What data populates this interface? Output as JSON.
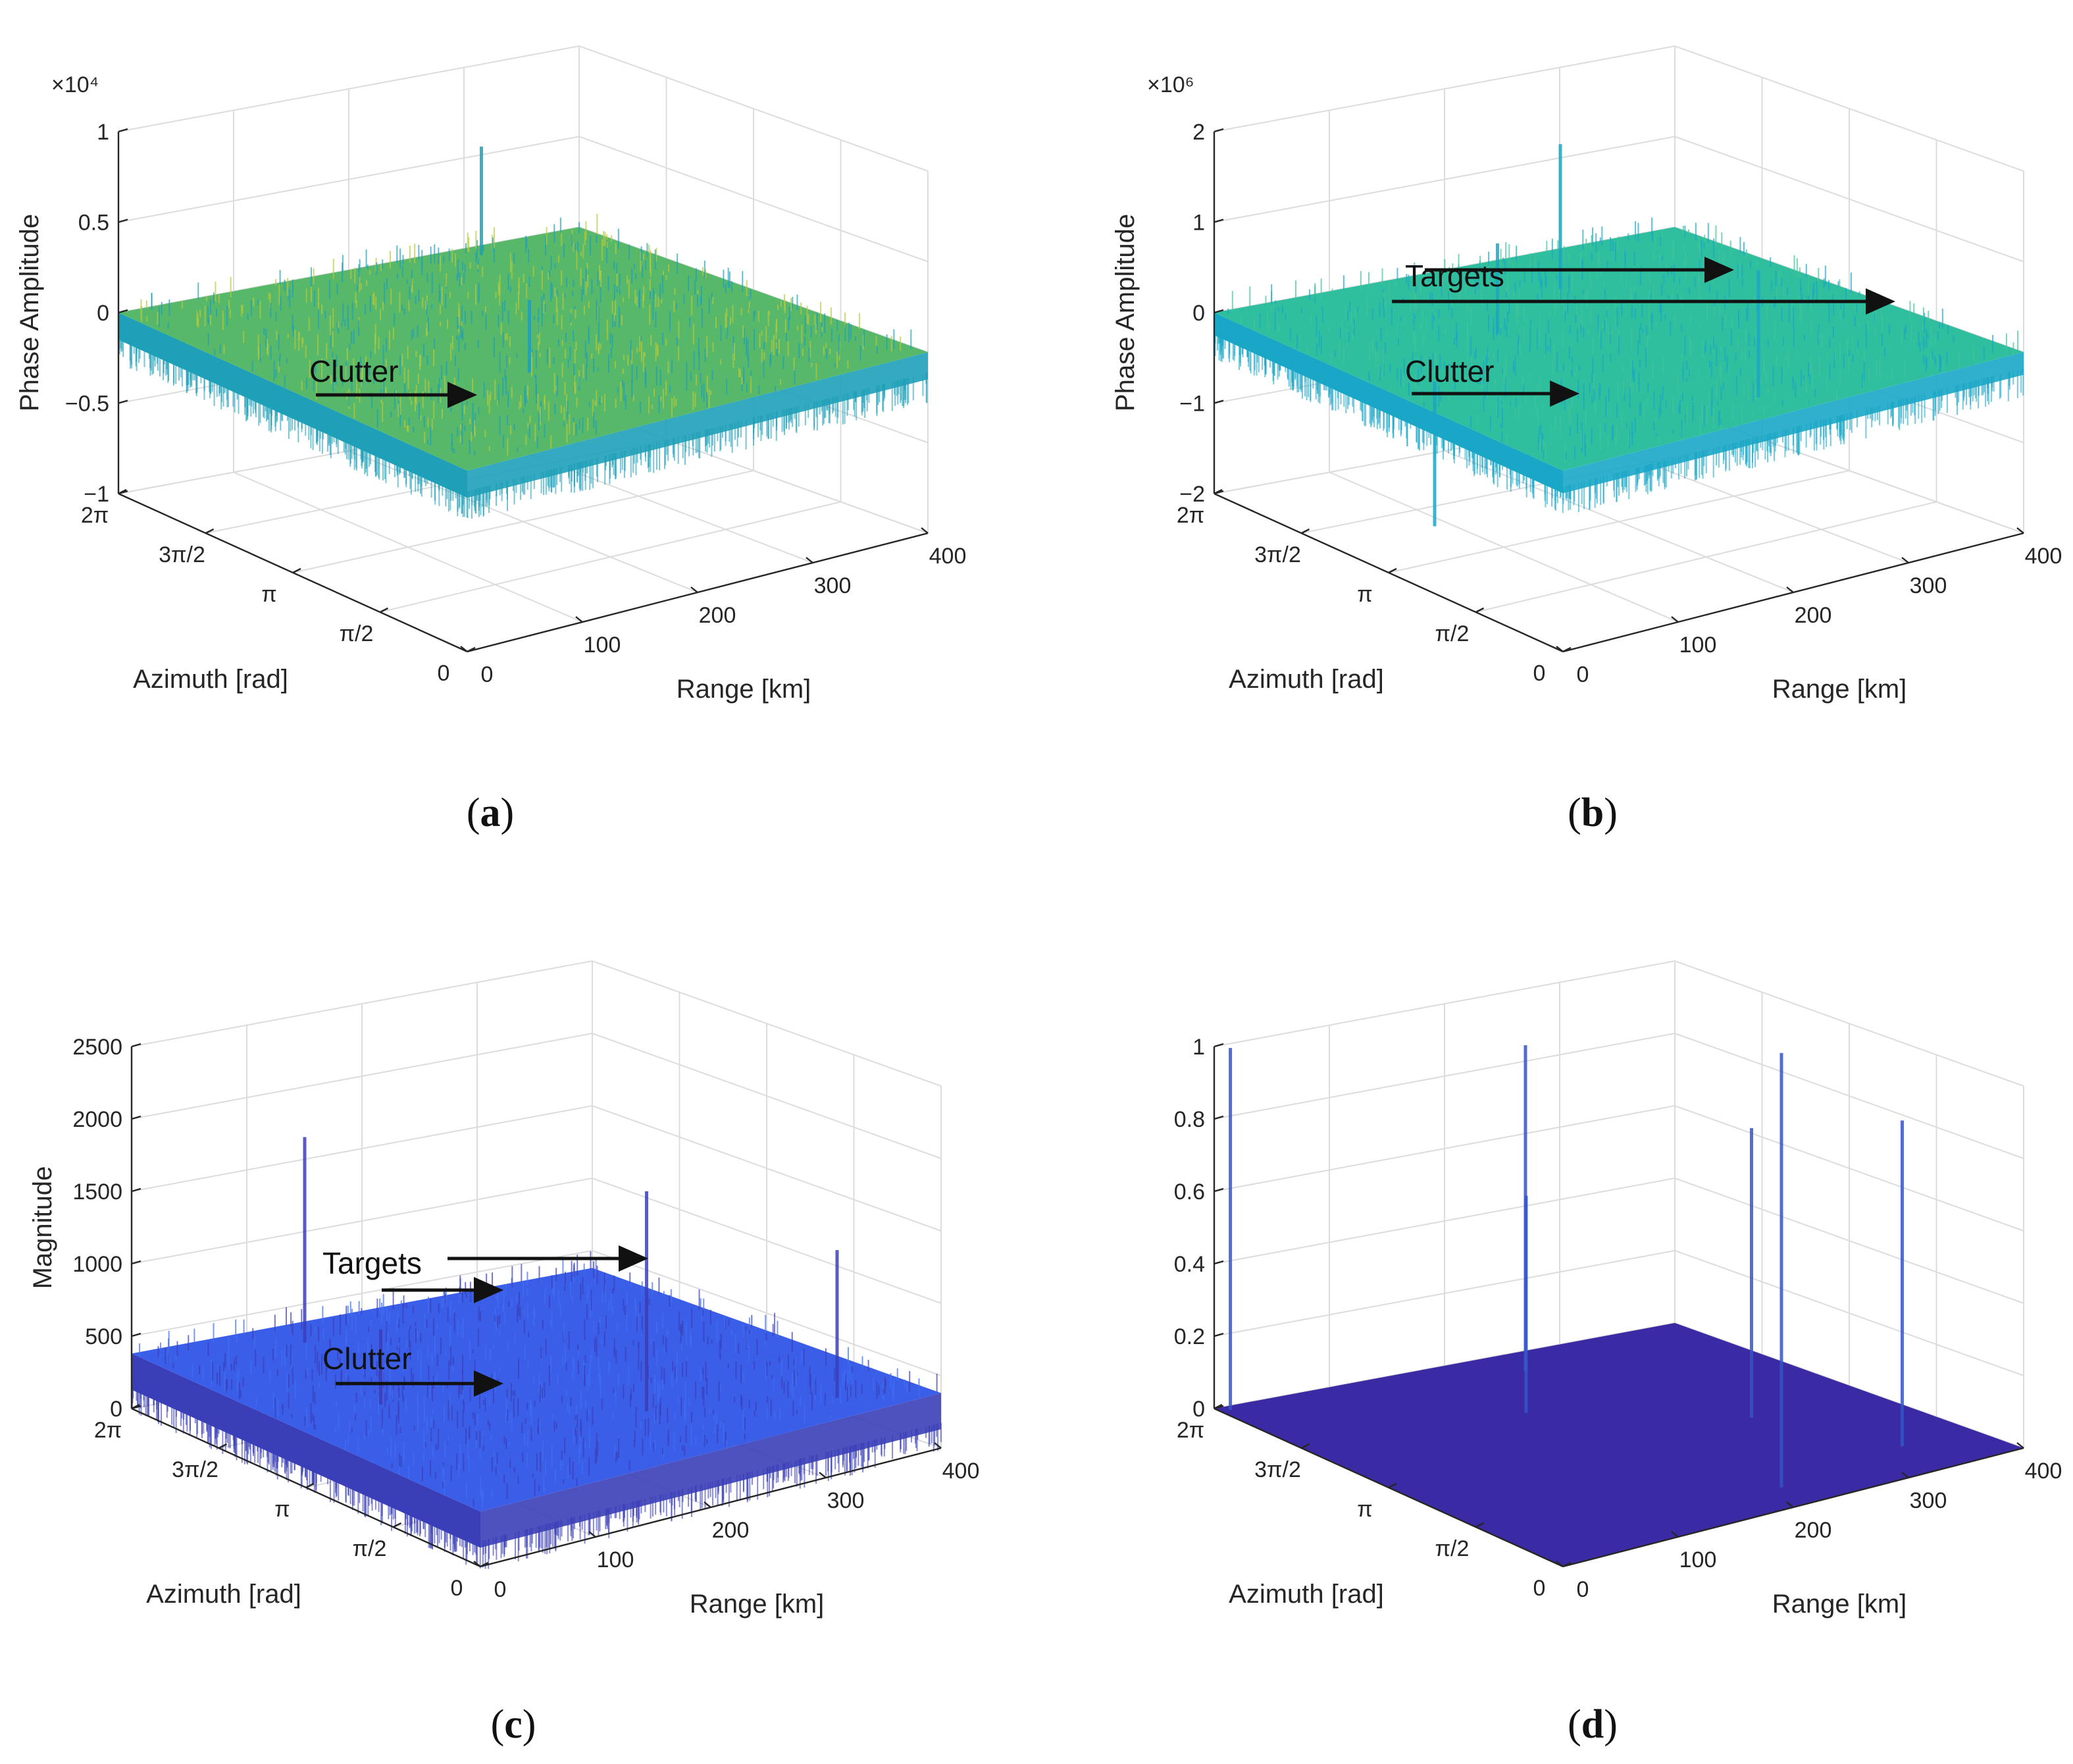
{
  "chart_data": [
    {
      "id": "a",
      "type": "surface3d",
      "caption": "a",
      "multiplier": "×10⁴",
      "zlabel": "Phase Amplitude",
      "xlabel": "Azimuth [rad]",
      "ylabel": "Range [km]",
      "zlim": [
        -1,
        1
      ],
      "zticks": [
        -1,
        -0.5,
        0,
        0.5,
        1
      ],
      "zticklabels": [
        "−1",
        "−0.5",
        "0",
        "0.5",
        "1"
      ],
      "azimuth_ticks": [
        "0",
        "π/2",
        "π",
        "3π/2",
        "2π"
      ],
      "range_ticks": [
        "0",
        "100",
        "200",
        "300",
        "400"
      ],
      "surface_top_color": "#b7c93a",
      "surface_mid_color": "#57b86a",
      "surface_side_color": "#1fa0b8",
      "annotations": [
        {
          "text": "Clutter",
          "target": "clutter"
        }
      ]
    },
    {
      "id": "b",
      "type": "surface3d",
      "caption": "b",
      "multiplier": "×10⁶",
      "zlabel": "Phase Amplitude",
      "xlabel": "Azimuth [rad]",
      "ylabel": "Range [km]",
      "zlim": [
        -2,
        2
      ],
      "zticks": [
        -2,
        -1,
        0,
        1,
        2
      ],
      "zticklabels": [
        "−2",
        "−1",
        "0",
        "1",
        "2"
      ],
      "azimuth_ticks": [
        "0",
        "π/2",
        "π",
        "3π/2",
        "2π"
      ],
      "range_ticks": [
        "0",
        "100",
        "200",
        "300",
        "400"
      ],
      "surface_top_color": "#3fc49a",
      "surface_mid_color": "#2fbf9e",
      "surface_side_color": "#1aa7c7",
      "annotations": [
        {
          "text": "Targets",
          "target": "targets"
        },
        {
          "text": "Clutter",
          "target": "clutter"
        }
      ]
    },
    {
      "id": "c",
      "type": "surface3d",
      "caption": "c",
      "multiplier": "",
      "zlabel": "Magnitude",
      "xlabel": "Azimuth [rad]",
      "ylabel": "Range [km]",
      "zlim": [
        0,
        2500
      ],
      "zticks": [
        0,
        500,
        1000,
        1500,
        2000,
        2500
      ],
      "zticklabels": [
        "0",
        "500",
        "1000",
        "1500",
        "2000",
        "2500"
      ],
      "azimuth_ticks": [
        "0",
        "π/2",
        "π",
        "3π/2",
        "2π"
      ],
      "range_ticks": [
        "0",
        "100",
        "200",
        "300",
        "400"
      ],
      "surface_top_color": "#3e6ef2",
      "surface_mid_color": "#3a5ee8",
      "surface_side_color": "#3a3fb8",
      "annotations": [
        {
          "text": "Targets",
          "target": "targets"
        },
        {
          "text": "Clutter",
          "target": "clutter"
        }
      ]
    },
    {
      "id": "d",
      "type": "surface3d",
      "caption": "d",
      "multiplier": "",
      "zlabel": "",
      "xlabel": "Azimuth [rad]",
      "ylabel": "Range [km]",
      "zlim": [
        0,
        1
      ],
      "zticks": [
        0,
        0.2,
        0.4,
        0.6,
        0.8,
        1
      ],
      "zticklabels": [
        "0",
        "0.2",
        "0.4",
        "0.6",
        "0.8",
        "1"
      ],
      "azimuth_ticks": [
        "0",
        "π/2",
        "π",
        "3π/2",
        "2π"
      ],
      "range_ticks": [
        "0",
        "100",
        "200",
        "300",
        "400"
      ],
      "surface_top_color": "#3a2aa3",
      "surface_mid_color": "#3a2aa3",
      "surface_side_color": "#3a2aa3",
      "peak_color": "#3556c8",
      "annotations": []
    }
  ]
}
